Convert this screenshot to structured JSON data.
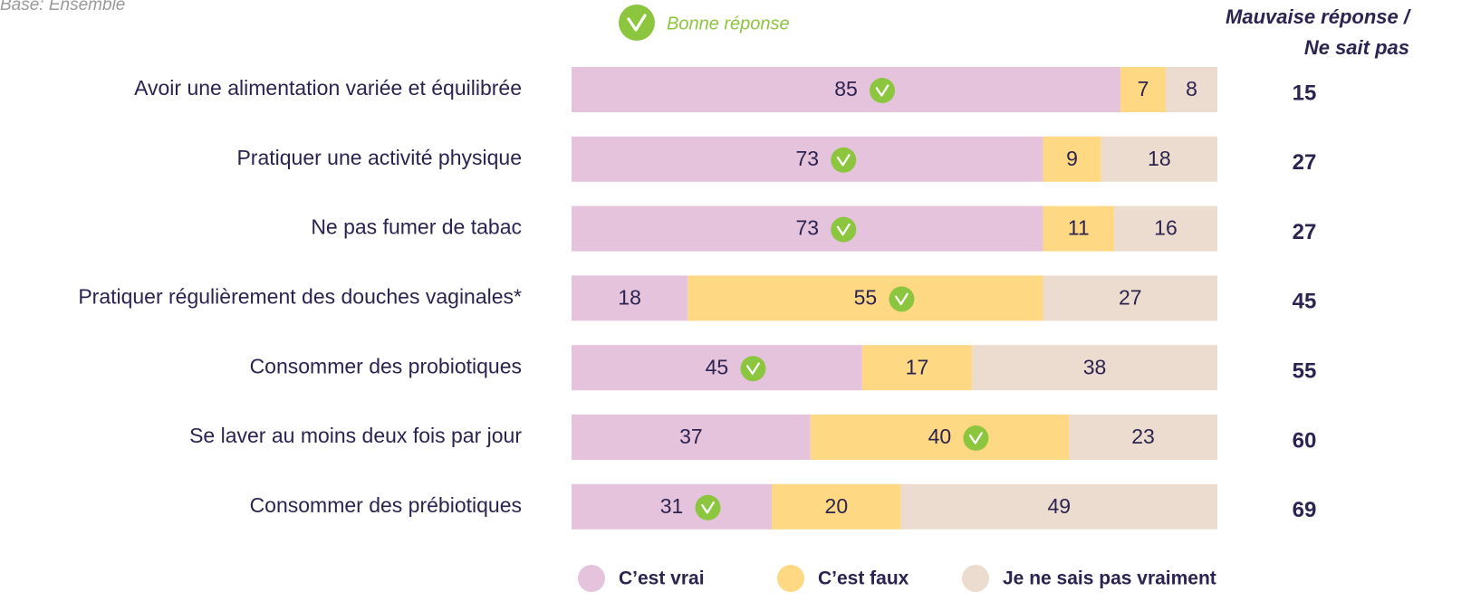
{
  "chart_data": {
    "type": "stacked-bar",
    "orientation": "horizontal",
    "subtitle": "Base: Ensemble",
    "correct_legend": "Bonne réponse",
    "categories": [
      "Avoir une alimentation variée et équilibrée",
      "Pratiquer une activité physique",
      "Ne pas fumer de tabac",
      "Pratiquer régulièrement des douches vaginales*",
      "Consommer des probiotiques",
      "Se laver au moins deux fois par jour",
      "Consommer des prébiotiques"
    ],
    "series": [
      {
        "name": "C’est vrai",
        "color": "#e6c3dc",
        "values": [
          85,
          73,
          73,
          18,
          45,
          37,
          31
        ]
      },
      {
        "name": "C’est faux",
        "color": "#fed882",
        "values": [
          7,
          9,
          11,
          55,
          17,
          40,
          20
        ]
      },
      {
        "name": "Je ne sais pas vraiment",
        "color": "#ecdccf",
        "values": [
          8,
          18,
          16,
          27,
          38,
          23,
          49
        ]
      }
    ],
    "correct_series": [
      0,
      0,
      0,
      1,
      0,
      1,
      0
    ],
    "right_column": {
      "title": [
        "Mauvaise réponse /",
        "Ne sait pas"
      ],
      "values": [
        15,
        27,
        27,
        45,
        55,
        60,
        69
      ]
    },
    "legend": "bottom"
  }
}
